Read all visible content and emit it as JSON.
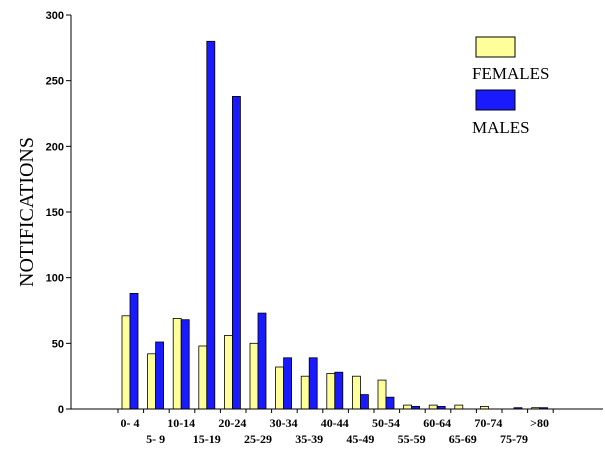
{
  "chart_data": {
    "type": "bar",
    "title": "",
    "xlabel": "",
    "ylabel": "NOTIFICATIONS",
    "ylim": [
      0,
      300
    ],
    "yticks": [
      0,
      50,
      100,
      150,
      200,
      250,
      300
    ],
    "grid": false,
    "legend_position": "top-right",
    "categories": [
      "0- 4",
      "5- 9",
      "10-14",
      "15-19",
      "20-24",
      "25-29",
      "30-34",
      "35-39",
      "40-44",
      "45-49",
      "50-54",
      "55-59",
      "60-64",
      "65-69",
      "70-74",
      "75-79",
      ">80"
    ],
    "series": [
      {
        "name": "FEMALES",
        "color": "#ffff99",
        "values": [
          71,
          42,
          69,
          48,
          56,
          50,
          32,
          25,
          27,
          25,
          22,
          3,
          3,
          3,
          2,
          0,
          1
        ]
      },
      {
        "name": "MALES",
        "color": "#1a1aff",
        "values": [
          88,
          51,
          68,
          280,
          238,
          73,
          39,
          39,
          28,
          11,
          9,
          2,
          2,
          0,
          0,
          1,
          1
        ]
      }
    ]
  }
}
